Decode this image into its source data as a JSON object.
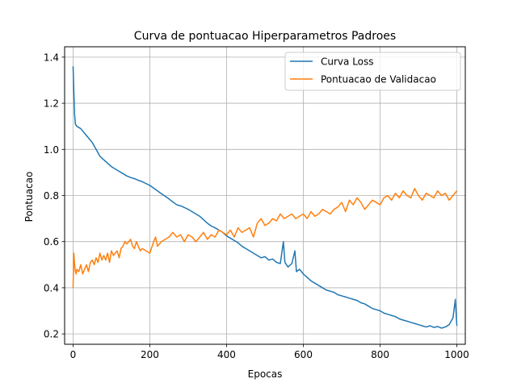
{
  "chart_data": {
    "type": "line",
    "title": "Curva de pontuacao Hiperparametros Padroes",
    "xlabel": "Epocas",
    "ylabel": "Pontuacao",
    "xlim": [
      -22,
      1022
    ],
    "ylim": [
      0.155,
      1.445
    ],
    "xticks": [
      0,
      200,
      400,
      600,
      800,
      1000
    ],
    "yticks": [
      0.2,
      0.4,
      0.6,
      0.8,
      1.0,
      1.2,
      1.4
    ],
    "xtick_labels": [
      "0",
      "200",
      "400",
      "600",
      "800",
      "1000"
    ],
    "ytick_labels": [
      "0.2",
      "0.4",
      "0.6",
      "0.8",
      "1.0",
      "1.2",
      "1.4"
    ],
    "grid": true,
    "legend_position": "upper right",
    "series": [
      {
        "name": "Curva Loss",
        "color": "#1f77b4",
        "x": [
          0,
          2,
          4,
          6,
          10,
          20,
          30,
          40,
          50,
          60,
          70,
          80,
          90,
          100,
          110,
          120,
          130,
          140,
          150,
          160,
          170,
          180,
          190,
          200,
          210,
          220,
          230,
          240,
          250,
          260,
          270,
          280,
          290,
          300,
          310,
          320,
          330,
          340,
          350,
          360,
          370,
          380,
          390,
          400,
          410,
          420,
          430,
          440,
          450,
          460,
          470,
          480,
          490,
          500,
          510,
          520,
          530,
          540,
          548,
          552,
          560,
          570,
          578,
          582,
          590,
          600,
          610,
          620,
          630,
          640,
          650,
          660,
          670,
          680,
          690,
          700,
          710,
          720,
          730,
          740,
          750,
          760,
          770,
          780,
          790,
          800,
          810,
          820,
          830,
          840,
          850,
          860,
          870,
          880,
          890,
          900,
          910,
          920,
          930,
          940,
          950,
          960,
          970,
          980,
          990,
          996,
          1000
        ],
        "y": [
          1.36,
          1.25,
          1.15,
          1.11,
          1.1,
          1.09,
          1.07,
          1.05,
          1.03,
          1.0,
          0.97,
          0.955,
          0.94,
          0.925,
          0.915,
          0.905,
          0.895,
          0.885,
          0.878,
          0.873,
          0.866,
          0.86,
          0.852,
          0.844,
          0.832,
          0.82,
          0.808,
          0.797,
          0.785,
          0.772,
          0.76,
          0.755,
          0.748,
          0.74,
          0.73,
          0.72,
          0.71,
          0.695,
          0.68,
          0.668,
          0.66,
          0.65,
          0.64,
          0.625,
          0.615,
          0.605,
          0.595,
          0.58,
          0.57,
          0.56,
          0.55,
          0.54,
          0.53,
          0.535,
          0.52,
          0.525,
          0.51,
          0.505,
          0.6,
          0.51,
          0.49,
          0.505,
          0.56,
          0.47,
          0.48,
          0.46,
          0.445,
          0.43,
          0.42,
          0.41,
          0.4,
          0.39,
          0.385,
          0.38,
          0.37,
          0.365,
          0.36,
          0.355,
          0.35,
          0.345,
          0.335,
          0.33,
          0.32,
          0.31,
          0.305,
          0.3,
          0.29,
          0.285,
          0.28,
          0.275,
          0.265,
          0.26,
          0.255,
          0.25,
          0.245,
          0.24,
          0.235,
          0.23,
          0.235,
          0.228,
          0.232,
          0.225,
          0.23,
          0.24,
          0.27,
          0.35,
          0.235
        ]
      },
      {
        "name": "Pontuacao de Validacao",
        "color": "#ff7f0e",
        "x": [
          0,
          2,
          4,
          6,
          8,
          10,
          15,
          20,
          25,
          30,
          35,
          40,
          45,
          50,
          55,
          60,
          65,
          70,
          75,
          80,
          85,
          90,
          95,
          100,
          105,
          110,
          115,
          120,
          125,
          130,
          135,
          140,
          145,
          150,
          155,
          160,
          165,
          170,
          175,
          180,
          190,
          200,
          210,
          215,
          220,
          230,
          240,
          250,
          260,
          270,
          280,
          290,
          300,
          310,
          320,
          330,
          340,
          350,
          360,
          370,
          380,
          390,
          400,
          410,
          420,
          430,
          440,
          450,
          460,
          470,
          480,
          490,
          500,
          510,
          520,
          530,
          540,
          550,
          560,
          570,
          580,
          590,
          600,
          610,
          620,
          630,
          640,
          650,
          660,
          670,
          680,
          690,
          700,
          710,
          720,
          730,
          740,
          750,
          760,
          770,
          780,
          790,
          800,
          810,
          820,
          830,
          840,
          850,
          860,
          870,
          880,
          890,
          900,
          910,
          920,
          930,
          940,
          950,
          960,
          970,
          980,
          990,
          1000
        ],
        "y": [
          0.4,
          0.55,
          0.5,
          0.47,
          0.46,
          0.48,
          0.47,
          0.5,
          0.46,
          0.48,
          0.5,
          0.47,
          0.51,
          0.52,
          0.5,
          0.53,
          0.51,
          0.55,
          0.52,
          0.54,
          0.52,
          0.55,
          0.51,
          0.56,
          0.54,
          0.55,
          0.56,
          0.53,
          0.57,
          0.58,
          0.6,
          0.59,
          0.6,
          0.61,
          0.58,
          0.57,
          0.6,
          0.58,
          0.56,
          0.57,
          0.56,
          0.55,
          0.6,
          0.62,
          0.58,
          0.6,
          0.61,
          0.62,
          0.64,
          0.62,
          0.63,
          0.6,
          0.63,
          0.62,
          0.6,
          0.62,
          0.64,
          0.61,
          0.63,
          0.62,
          0.65,
          0.64,
          0.63,
          0.65,
          0.62,
          0.66,
          0.64,
          0.65,
          0.66,
          0.62,
          0.68,
          0.7,
          0.67,
          0.68,
          0.7,
          0.69,
          0.72,
          0.7,
          0.71,
          0.72,
          0.7,
          0.71,
          0.72,
          0.7,
          0.73,
          0.71,
          0.72,
          0.74,
          0.73,
          0.72,
          0.74,
          0.75,
          0.77,
          0.73,
          0.78,
          0.76,
          0.79,
          0.77,
          0.74,
          0.76,
          0.78,
          0.77,
          0.76,
          0.79,
          0.8,
          0.78,
          0.81,
          0.79,
          0.82,
          0.8,
          0.79,
          0.83,
          0.8,
          0.78,
          0.81,
          0.8,
          0.79,
          0.82,
          0.8,
          0.81,
          0.78,
          0.8,
          0.82
        ]
      }
    ]
  }
}
